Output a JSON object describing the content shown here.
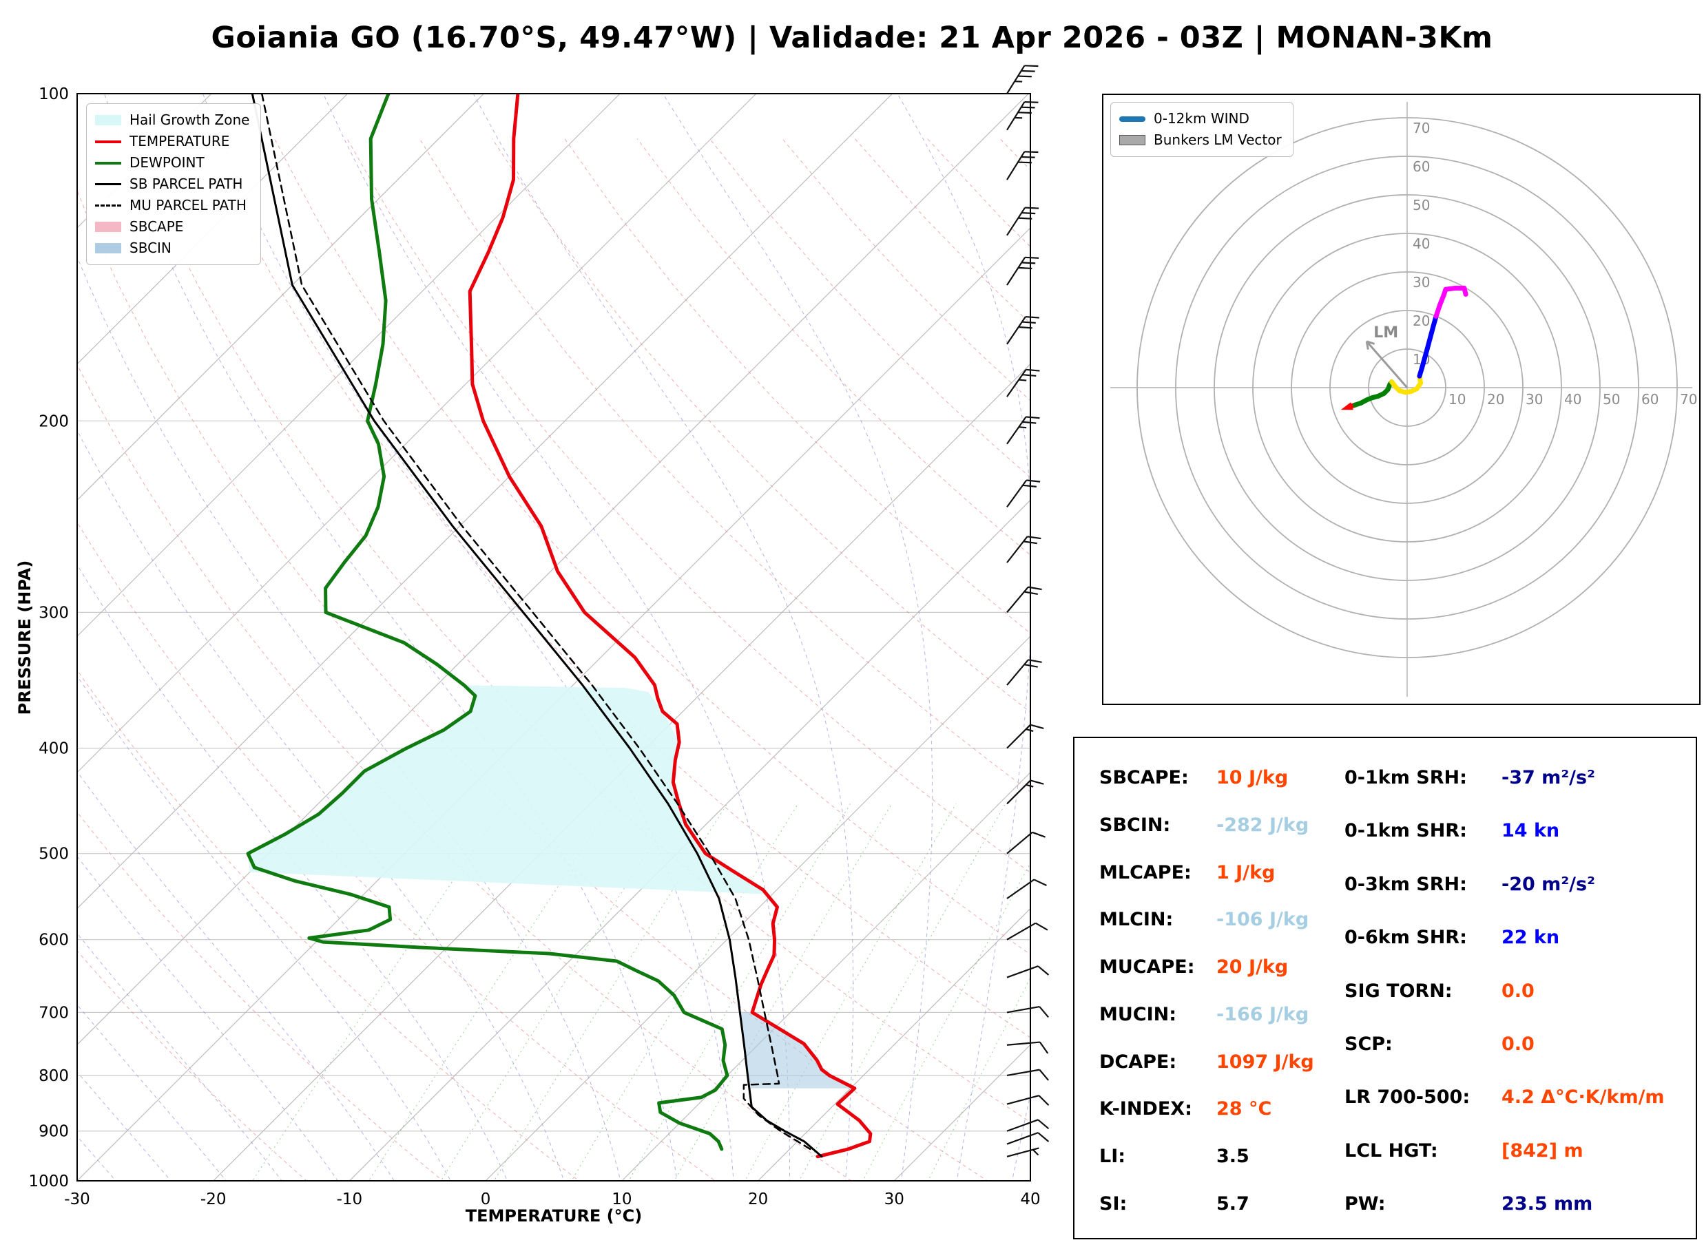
{
  "title": "Goiania GO (16.70°S, 49.47°W) | Validade: 21 Apr 2026 - 03Z | MONAN-3Km",
  "chart_data": [
    {
      "id": "skewt",
      "type": "line",
      "xlabel": "TEMPERATURE (°C)",
      "ylabel": "PRESSURE (HPA)",
      "xlim": [
        -30,
        40
      ],
      "ylim": [
        1000,
        100
      ],
      "y_scale": "log",
      "skew": "45deg",
      "grid": true,
      "x_ticks": [
        -30,
        -20,
        -10,
        0,
        10,
        20,
        30,
        40
      ],
      "y_ticks": [
        100,
        200,
        300,
        400,
        500,
        600,
        700,
        800,
        900,
        1000
      ],
      "legend": [
        "Hail Growth Zone",
        "TEMPERATURE",
        "DEWPOINT",
        "SB PARCEL PATH",
        "MU PARCEL PATH",
        "SBCAPE",
        "SBCIN"
      ],
      "series": [
        {
          "name": "TEMPERATURE",
          "color": "#e8000b",
          "width": 5,
          "points": [
            [
              950,
              22.6
            ],
            [
              935,
              24.3
            ],
            [
              920,
              25.3
            ],
            [
              905,
              24.8
            ],
            [
              880,
              23.0
            ],
            [
              850,
              20.2
            ],
            [
              822,
              20.3
            ],
            [
              800,
              17.5
            ],
            [
              790,
              16.5
            ],
            [
              775,
              15.5
            ],
            [
              748,
              13.3
            ],
            [
              700,
              7.2
            ],
            [
              660,
              5.8
            ],
            [
              640,
              5.2
            ],
            [
              620,
              4.6
            ],
            [
              600,
              3.5
            ],
            [
              580,
              2.2
            ],
            [
              560,
              1.3
            ],
            [
              540,
              -1.0
            ],
            [
              520,
              -4.4
            ],
            [
              500,
              -7.9
            ],
            [
              470,
              -11.5
            ],
            [
              450,
              -13.5
            ],
            [
              430,
              -15.5
            ],
            [
              410,
              -17.0
            ],
            [
              395,
              -18.0
            ],
            [
              380,
              -19.5
            ],
            [
              370,
              -21.5
            ],
            [
              360,
              -22.8
            ],
            [
              350,
              -24.0
            ],
            [
              330,
              -27.5
            ],
            [
              300,
              -34.5
            ],
            [
              275,
              -39.5
            ],
            [
              250,
              -44.0
            ],
            [
              225,
              -50.0
            ],
            [
              200,
              -56.0
            ],
            [
              185,
              -59.5
            ],
            [
              170,
              -62.5
            ],
            [
              152,
              -66.5
            ],
            [
              140,
              -68.0
            ],
            [
              130,
              -69.5
            ],
            [
              120,
              -71.5
            ],
            [
              110,
              -74.5
            ],
            [
              100,
              -77.5
            ]
          ]
        },
        {
          "name": "DEWPOINT",
          "color": "#0f7a0f",
          "width": 5,
          "points": [
            [
              935,
              15.0
            ],
            [
              920,
              14.2
            ],
            [
              905,
              13.0
            ],
            [
              885,
              10.0
            ],
            [
              865,
              7.8
            ],
            [
              848,
              7.0
            ],
            [
              838,
              9.7
            ],
            [
              825,
              10.2
            ],
            [
              800,
              10.0
            ],
            [
              775,
              8.6
            ],
            [
              750,
              7.6
            ],
            [
              725,
              6.2
            ],
            [
              700,
              2.2
            ],
            [
              675,
              0.2
            ],
            [
              655,
              -2.0
            ],
            [
              640,
              -4.5
            ],
            [
              628,
              -6.5
            ],
            [
              618,
              -12.0
            ],
            [
              610,
              -22.0
            ],
            [
              603,
              -29.5
            ],
            [
              598,
              -30.8
            ],
            [
              588,
              -27.0
            ],
            [
              575,
              -26.2
            ],
            [
              560,
              -27.2
            ],
            [
              545,
              -31.0
            ],
            [
              530,
              -36.0
            ],
            [
              515,
              -40.0
            ],
            [
              500,
              -41.5
            ],
            [
              480,
              -40.2
            ],
            [
              460,
              -39.2
            ],
            [
              440,
              -39.0
            ],
            [
              420,
              -39.0
            ],
            [
              400,
              -37.6
            ],
            [
              385,
              -36.2
            ],
            [
              370,
              -35.6
            ],
            [
              358,
              -36.4
            ],
            [
              350,
              -38.0
            ],
            [
              335,
              -41.5
            ],
            [
              320,
              -45.5
            ],
            [
              300,
              -53.5
            ],
            [
              285,
              -55.3
            ],
            [
              270,
              -55.8
            ],
            [
              255,
              -56.2
            ],
            [
              240,
              -57.4
            ],
            [
              225,
              -59.2
            ],
            [
              210,
              -62.0
            ],
            [
              200,
              -64.5
            ],
            [
              185,
              -66.6
            ],
            [
              170,
              -69.0
            ],
            [
              155,
              -72.0
            ],
            [
              140,
              -76.0
            ],
            [
              125,
              -80.5
            ],
            [
              110,
              -85.0
            ],
            [
              100,
              -87.0
            ]
          ]
        },
        {
          "name": "SB PARCEL PATH",
          "color": "#000000",
          "width": 3,
          "points": [
            [
              950,
              22.9
            ],
            [
              920,
              20.5
            ],
            [
              900,
              18.3
            ],
            [
              880,
              16.2
            ],
            [
              855,
              14.1
            ],
            [
              800,
              11.5
            ],
            [
              750,
              9.0
            ],
            [
              700,
              6.3
            ],
            [
              650,
              3.4
            ],
            [
              600,
              0.2
            ],
            [
              550,
              -3.6
            ],
            [
              500,
              -8.5
            ],
            [
              450,
              -14.3
            ],
            [
              400,
              -21.2
            ],
            [
              350,
              -29.3
            ],
            [
              300,
              -39.0
            ],
            [
              250,
              -50.5
            ],
            [
              200,
              -64.0
            ],
            [
              150,
              -80.0
            ],
            [
              100,
              -97.0
            ]
          ]
        },
        {
          "name": "MU PARCEL PATH",
          "color": "#000000",
          "width": 2.5,
          "dash": "10 7",
          "points": [
            [
              935,
              21.5
            ],
            [
              900,
              18.0
            ],
            [
              870,
              15.2
            ],
            [
              840,
              12.9
            ],
            [
              816,
              11.9
            ],
            [
              814,
              14.4
            ],
            [
              800,
              13.7
            ],
            [
              750,
              11.0
            ],
            [
              700,
              8.1
            ],
            [
              650,
              5.0
            ],
            [
              600,
              1.6
            ],
            [
              550,
              -2.4
            ],
            [
              500,
              -7.6
            ],
            [
              450,
              -13.6
            ],
            [
              400,
              -20.5
            ],
            [
              350,
              -28.6
            ],
            [
              300,
              -38.3
            ],
            [
              250,
              -49.8
            ],
            [
              200,
              -63.3
            ],
            [
              150,
              -79.3
            ],
            [
              100,
              -96.3
            ]
          ]
        }
      ],
      "fills": [
        {
          "name": "Hail Growth Zone",
          "color": "#d8f7f7",
          "opacity": 0.9,
          "points": [
            [
              350,
              -38.0
            ],
            [
              352,
              -26.0
            ],
            [
              355,
              -24.0
            ],
            [
              370,
              -21.5
            ],
            [
              395,
              -18.0
            ],
            [
              410,
              -17.0
            ],
            [
              430,
              -15.5
            ],
            [
              450,
              -13.5
            ],
            [
              500,
              -7.9
            ],
            [
              545,
              -0.4
            ],
            [
              520,
              -40.0
            ],
            [
              500,
              -41.5
            ],
            [
              480,
              -40.2
            ],
            [
              460,
              -39.2
            ],
            [
              440,
              -39.0
            ],
            [
              420,
              -39.0
            ],
            [
              400,
              -37.6
            ],
            [
              385,
              -36.2
            ],
            [
              370,
              -35.6
            ],
            [
              358,
              -36.4
            ]
          ]
        },
        {
          "name": "SBCAPE",
          "color": "#f4b8c4",
          "opacity": 0.6,
          "points": []
        },
        {
          "name": "SBCIN",
          "color": "#aecde3",
          "opacity": 0.6,
          "points": [
            [
              700,
              6.3
            ],
            [
              750,
              9.0
            ],
            [
              800,
              11.5
            ],
            [
              822,
              12.6
            ],
            [
              822,
              20.3
            ],
            [
              800,
              17.5
            ],
            [
              790,
              16.5
            ],
            [
              775,
              15.5
            ],
            [
              748,
              13.3
            ],
            [
              700,
              7.2
            ]
          ]
        }
      ],
      "wind_barbs_p_spd_dir": [
        [
          950,
          5,
          75
        ],
        [
          925,
          8,
          70
        ],
        [
          900,
          10,
          70
        ],
        [
          850,
          10,
          75
        ],
        [
          800,
          10,
          80
        ],
        [
          750,
          12,
          85
        ],
        [
          700,
          10,
          80
        ],
        [
          650,
          8,
          70
        ],
        [
          600,
          8,
          60
        ],
        [
          550,
          10,
          55
        ],
        [
          500,
          12,
          50
        ],
        [
          450,
          15,
          45
        ],
        [
          400,
          15,
          45
        ],
        [
          350,
          18,
          40
        ],
        [
          300,
          20,
          40
        ],
        [
          270,
          20,
          38
        ],
        [
          240,
          22,
          36
        ],
        [
          210,
          25,
          35
        ],
        [
          190,
          25,
          35
        ],
        [
          170,
          28,
          34
        ],
        [
          150,
          30,
          33
        ],
        [
          135,
          30,
          33
        ],
        [
          120,
          32,
          32
        ],
        [
          108,
          35,
          32
        ],
        [
          100,
          35,
          32
        ]
      ]
    },
    {
      "id": "hodograph",
      "type": "line",
      "units": "kn",
      "legend": [
        "0-12km WIND",
        "Bunkers LM Vector"
      ],
      "legend_swatches": [
        {
          "type": "line",
          "color": "#1f77b4"
        },
        {
          "type": "patch",
          "color": "#a9a9a9"
        }
      ],
      "rings": [
        10,
        20,
        30,
        40,
        50,
        60,
        70
      ],
      "trace": [
        [
          -15,
          -5,
          "#ff0000"
        ],
        [
          -13.5,
          -4.5,
          "#008000"
        ],
        [
          -12,
          -4,
          "#008000"
        ],
        [
          -10.5,
          -3.2,
          "#008000"
        ],
        [
          -9,
          -2.6,
          "#008000"
        ],
        [
          -7.5,
          -2.2,
          "#008000"
        ],
        [
          -6,
          -1.5,
          "#008000"
        ],
        [
          -5,
          -0.5,
          "#008000"
        ],
        [
          -4.5,
          0.8,
          "#008000"
        ],
        [
          -4,
          1.5,
          "#ffe100"
        ],
        [
          -3,
          0.2,
          "#ffe100"
        ],
        [
          -2,
          -0.8,
          "#ffe100"
        ],
        [
          -0.5,
          -1.2,
          "#ffe100"
        ],
        [
          1,
          -1,
          "#ffe100"
        ],
        [
          2.5,
          -0.3,
          "#ffe100"
        ],
        [
          3.5,
          1.2,
          "#ffe100"
        ],
        [
          3.2,
          3,
          "#0000ff"
        ],
        [
          3.8,
          5,
          "#0000ff"
        ],
        [
          4.5,
          7.5,
          "#0000ff"
        ],
        [
          5.2,
          10,
          "#0000ff"
        ],
        [
          6,
          13,
          "#0000ff"
        ],
        [
          6.8,
          16,
          "#0000ff"
        ],
        [
          7.5,
          18.5,
          "#ff00ff"
        ],
        [
          8.5,
          21.5,
          "#ff00ff"
        ],
        [
          9.5,
          24,
          "#ff00ff"
        ],
        [
          10,
          25.5,
          "#ff00ff"
        ],
        [
          12.5,
          25.8,
          "#ff00ff"
        ],
        [
          14.8,
          25.8,
          "#ff00ff"
        ],
        [
          15.2,
          24.2,
          "#ff00ff"
        ]
      ],
      "lm_vector": {
        "u": -10.5,
        "v": 12.0,
        "label": "LM"
      }
    }
  ],
  "indices": {
    "left": [
      {
        "label": "SBCAPE:",
        "value": "10 J/kg",
        "color": "#ff4500"
      },
      {
        "label": "SBCIN:",
        "value": "-282 J/kg",
        "color": "#a6cee3"
      },
      {
        "label": "MLCAPE:",
        "value": "1 J/kg",
        "color": "#ff4500"
      },
      {
        "label": "MLCIN:",
        "value": "-106 J/kg",
        "color": "#a6cee3"
      },
      {
        "label": "MUCAPE:",
        "value": "20 J/kg",
        "color": "#ff4500"
      },
      {
        "label": "MUCIN:",
        "value": "-166 J/kg",
        "color": "#a6cee3"
      },
      {
        "label": "DCAPE:",
        "value": "1097 J/kg",
        "color": "#ff4500"
      },
      {
        "label": "K-INDEX:",
        "value": "28 °C",
        "color": "#ff4500"
      },
      {
        "label": "LI:",
        "value": "3.5",
        "color": "#000000"
      },
      {
        "label": "SI:",
        "value": "5.7",
        "color": "#000000"
      }
    ],
    "right": [
      {
        "label": "0-1km SRH:",
        "value": "-37 m²/s²",
        "color": "#00008b"
      },
      {
        "label": "0-1km SHR:",
        "value": "14 kn",
        "color": "#0000ff"
      },
      {
        "label": "0-3km SRH:",
        "value": "-20 m²/s²",
        "color": "#00008b"
      },
      {
        "label": "0-6km SHR:",
        "value": "22 kn",
        "color": "#0000ff"
      },
      {
        "label": "SIG TORN:",
        "value": "0.0",
        "color": "#ff4500"
      },
      {
        "label": "SCP:",
        "value": "0.0",
        "color": "#ff4500"
      },
      {
        "label": "LR 700-500:",
        "value": "4.2 Δ°C·K/km/m",
        "color": "#ff4500"
      },
      {
        "label": "LCL HGT:",
        "value": "[842] m",
        "color": "#ff4500"
      },
      {
        "label": "PW:",
        "value": "23.5 mm",
        "color": "#00008b"
      }
    ]
  }
}
